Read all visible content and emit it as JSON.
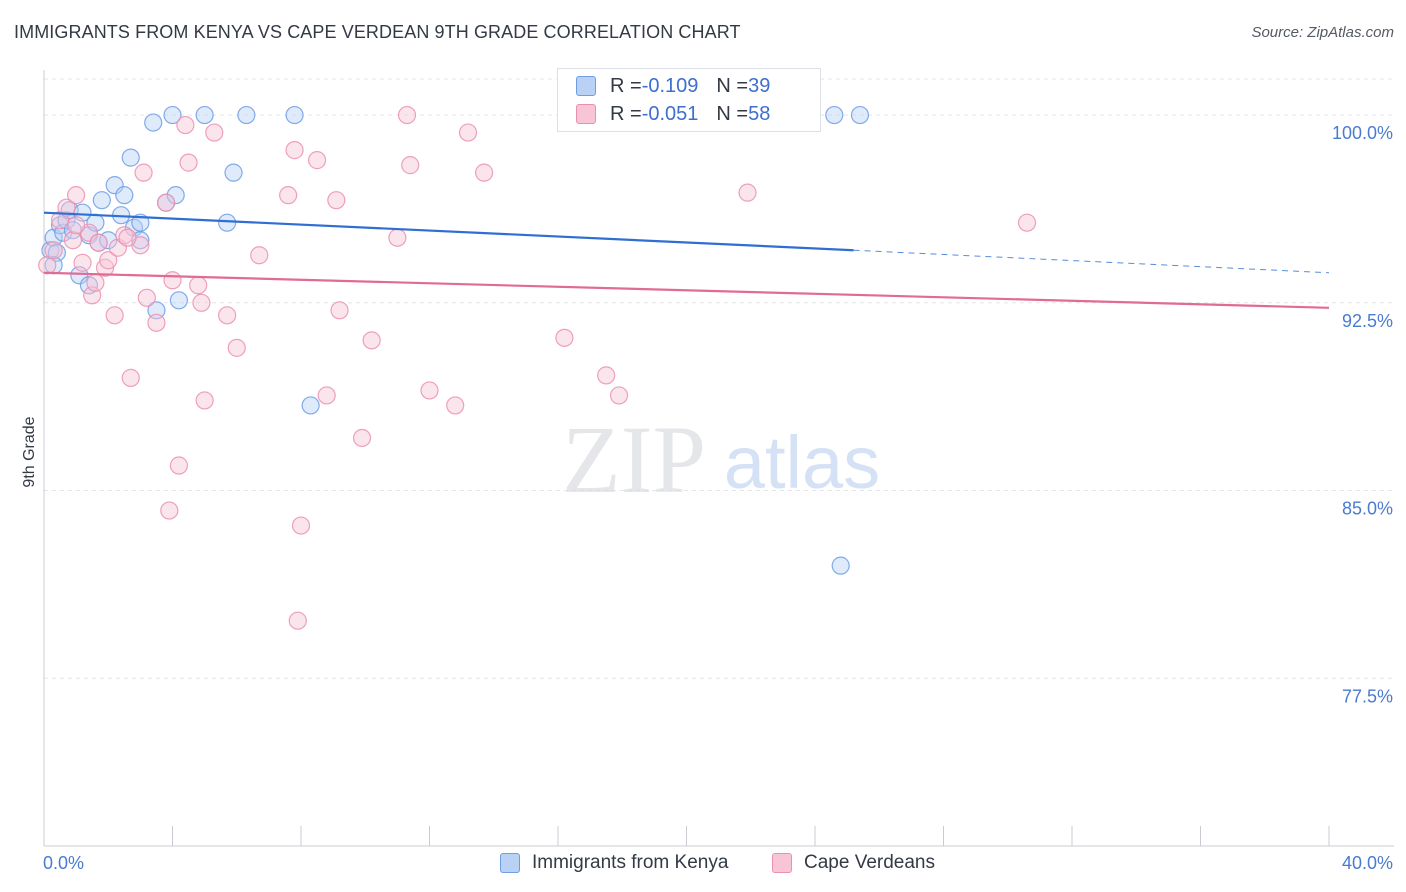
{
  "header": {
    "title": "IMMIGRANTS FROM KENYA VS CAPE VERDEAN 9TH GRADE CORRELATION CHART",
    "source": "Source: ZipAtlas.com"
  },
  "watermark": {
    "zip": "ZIP",
    "atlas": "atlas"
  },
  "legend": {
    "series": [
      {
        "r_label": "R = ",
        "r_value": "-0.109",
        "n_label": "N = ",
        "n_value": "39"
      },
      {
        "r_label": "R = ",
        "r_value": "-0.051",
        "n_label": "N = ",
        "n_value": "58"
      }
    ]
  },
  "bottom_legend": {
    "kenya": "Immigrants from Kenya",
    "cape": "Cape Verdeans"
  },
  "chart_data": {
    "type": "scatter",
    "title": "IMMIGRANTS FROM KENYA VS CAPE VERDEAN 9TH GRADE CORRELATION CHART",
    "xlabel": "",
    "ylabel": "9th Grade",
    "xlim": [
      0,
      40
    ],
    "ylim": [
      70.8,
      101.8
    ],
    "x_tick_labels": [
      {
        "value": 0,
        "label": "0.0%"
      },
      {
        "value": 40,
        "label": "40.0%"
      }
    ],
    "y_tick_labels": [
      {
        "value": 100,
        "label": "100.0%"
      },
      {
        "value": 92.5,
        "label": "92.5%"
      },
      {
        "value": 85,
        "label": "85.0%"
      },
      {
        "value": 77.5,
        "label": "77.5%"
      }
    ],
    "grid": true,
    "legend_position": "top-center",
    "colors": {
      "kenya": "#6d9ee6",
      "kenya_fill": "#b9d1f5",
      "cape": "#ec8fb0",
      "cape_fill": "#f7c5d6",
      "kenya_line": "#2f6fd1",
      "cape_line": "#e06b94"
    },
    "series": [
      {
        "name": "Immigrants from Kenya",
        "color": "#6d9ee6",
        "trend": {
          "x0": 0,
          "y0": 96.1,
          "x1": 25.2,
          "y1": 94.6,
          "dash_to_x": 40,
          "dash_to_y": 93.7
        },
        "points": [
          [
            0.2,
            94.6
          ],
          [
            0.3,
            95.1
          ],
          [
            0.4,
            94.5
          ],
          [
            0.5,
            95.6
          ],
          [
            0.6,
            95.3
          ],
          [
            0.7,
            95.8
          ],
          [
            0.8,
            96.2
          ],
          [
            0.9,
            95.4
          ],
          [
            1.1,
            93.6
          ],
          [
            1.2,
            96.1
          ],
          [
            1.4,
            95.2
          ],
          [
            1.4,
            93.2
          ],
          [
            1.6,
            95.7
          ],
          [
            1.7,
            94.9
          ],
          [
            1.8,
            96.6
          ],
          [
            2.0,
            95.0
          ],
          [
            2.2,
            97.2
          ],
          [
            2.4,
            96.0
          ],
          [
            2.5,
            96.8
          ],
          [
            2.7,
            98.3
          ],
          [
            2.8,
            95.5
          ],
          [
            3.0,
            95.7
          ],
          [
            3.4,
            99.7
          ],
          [
            3.5,
            92.2
          ],
          [
            3.8,
            96.5
          ],
          [
            4.0,
            100.0
          ],
          [
            4.1,
            96.8
          ],
          [
            4.2,
            92.6
          ],
          [
            5.0,
            100.0
          ],
          [
            5.7,
            95.7
          ],
          [
            5.9,
            97.7
          ],
          [
            6.3,
            100.0
          ],
          [
            7.8,
            100.0
          ],
          [
            8.3,
            88.4
          ],
          [
            24.6,
            100.0
          ],
          [
            25.4,
            100.0
          ],
          [
            24.8,
            82.0
          ],
          [
            3.0,
            95.0
          ],
          [
            0.3,
            94.0
          ]
        ]
      },
      {
        "name": "Cape Verdeans",
        "color": "#ec8fb0",
        "trend": {
          "x0": 0,
          "y0": 93.7,
          "x1": 40,
          "y1": 92.3
        },
        "points": [
          [
            0.1,
            94.0
          ],
          [
            0.3,
            94.6
          ],
          [
            0.5,
            95.8
          ],
          [
            0.7,
            96.3
          ],
          [
            0.9,
            95.0
          ],
          [
            1.0,
            96.8
          ],
          [
            1.2,
            94.1
          ],
          [
            1.4,
            95.3
          ],
          [
            1.5,
            92.8
          ],
          [
            1.6,
            93.3
          ],
          [
            1.7,
            94.9
          ],
          [
            1.9,
            93.9
          ],
          [
            2.0,
            94.2
          ],
          [
            2.2,
            92.0
          ],
          [
            2.3,
            94.7
          ],
          [
            2.5,
            95.2
          ],
          [
            2.7,
            89.5
          ],
          [
            3.0,
            94.8
          ],
          [
            3.1,
            97.7
          ],
          [
            3.2,
            92.7
          ],
          [
            3.5,
            91.7
          ],
          [
            3.8,
            96.5
          ],
          [
            3.9,
            84.2
          ],
          [
            4.0,
            93.4
          ],
          [
            4.2,
            86.0
          ],
          [
            4.4,
            99.6
          ],
          [
            4.5,
            98.1
          ],
          [
            4.8,
            93.2
          ],
          [
            4.9,
            92.5
          ],
          [
            5.0,
            88.6
          ],
          [
            5.3,
            99.3
          ],
          [
            5.7,
            92.0
          ],
          [
            6.0,
            90.7
          ],
          [
            6.7,
            94.4
          ],
          [
            7.6,
            96.8
          ],
          [
            7.8,
            98.6
          ],
          [
            8.0,
            83.6
          ],
          [
            7.9,
            79.8
          ],
          [
            8.5,
            98.2
          ],
          [
            8.8,
            88.8
          ],
          [
            9.1,
            96.6
          ],
          [
            9.2,
            92.2
          ],
          [
            9.9,
            87.1
          ],
          [
            10.2,
            91.0
          ],
          [
            11.0,
            95.1
          ],
          [
            11.3,
            100.0
          ],
          [
            11.4,
            98.0
          ],
          [
            12.0,
            89.0
          ],
          [
            12.8,
            88.4
          ],
          [
            13.2,
            99.3
          ],
          [
            13.7,
            97.7
          ],
          [
            16.2,
            91.1
          ],
          [
            17.5,
            89.6
          ],
          [
            17.9,
            88.8
          ],
          [
            21.9,
            96.9
          ],
          [
            30.6,
            95.7
          ],
          [
            1.0,
            95.6
          ],
          [
            2.6,
            95.1
          ]
        ]
      }
    ]
  }
}
